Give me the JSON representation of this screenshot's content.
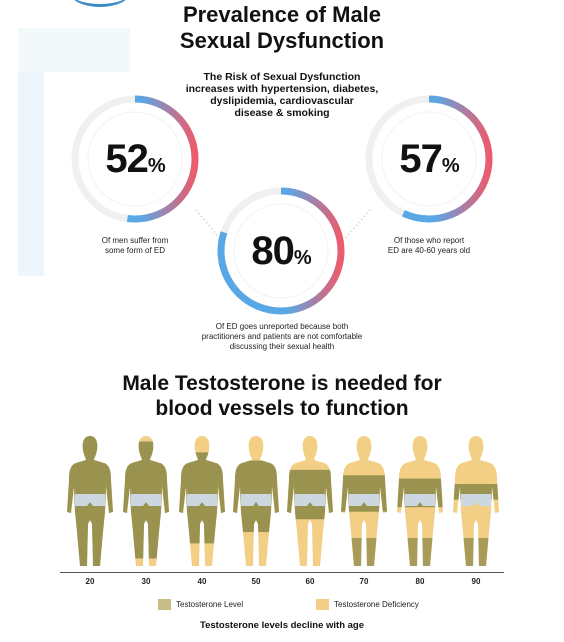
{
  "header": {
    "title_line1": "Prevalence of Male",
    "title_line2": "Sexual Dysfunction",
    "risk_line1": "The Risk of Sexual Dysfunction",
    "risk_line2": "increases with hypertension, diabetes,",
    "risk_line3": "dyslipidemia, cardiovascular",
    "risk_line4": "disease & smoking"
  },
  "stats": [
    {
      "value": "52",
      "unit": "%",
      "caption_line1": "Of men suffer from",
      "caption_line2": "some form of ED",
      "fraction": 0.52
    },
    {
      "value": "80",
      "unit": "%",
      "caption_line1": "Of ED goes unreported because both",
      "caption_line2": "practitioners and patients are not comfortable",
      "caption_line3": "discussing their sexual health",
      "fraction": 0.8
    },
    {
      "value": "57",
      "unit": "%",
      "caption_line1": "Of those who report",
      "caption_line2": "ED are 40-60 years old",
      "fraction": 0.57
    }
  ],
  "testosterone": {
    "title_line1": "Male Testosterone is needed for",
    "title_line2": "blood vessels to function",
    "ages": [
      "20",
      "30",
      "40",
      "50",
      "60",
      "70",
      "80",
      "90"
    ],
    "level_fraction": [
      1.0,
      0.9,
      0.7,
      0.55,
      0.38,
      0.28,
      0.22,
      0.12
    ],
    "legend_level": "Testosterone Level",
    "legend_deficiency": "Testosterone Deficiency",
    "footer": "Testosterone levels decline with age"
  },
  "colors": {
    "ring_blue": "#5aa7e6",
    "ring_red": "#ec5b6c",
    "level": "#9a9350",
    "deficiency": "#f3cf86",
    "shorts": "#ccd7e2"
  }
}
